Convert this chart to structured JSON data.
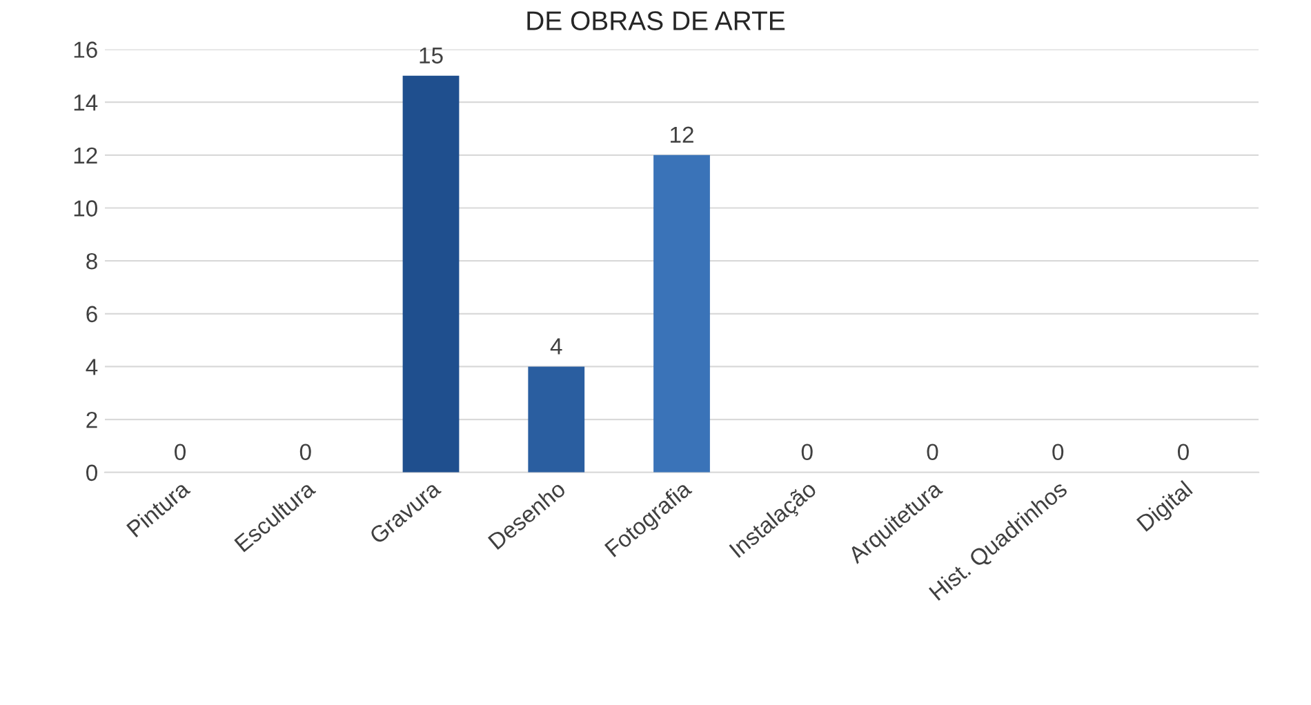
{
  "chart_data": {
    "type": "bar",
    "title": "DE OBRAS DE ARTE",
    "categories": [
      "Pintura",
      "Escultura",
      "Gravura",
      "Desenho",
      "Fotografia",
      "Instalação",
      "Arquitetura",
      "Hist. Quadrinhos",
      "Digital"
    ],
    "values": [
      0,
      0,
      15,
      4,
      12,
      0,
      0,
      0,
      0
    ],
    "colors": [
      "#12375e",
      "#163f6b",
      "#1f4f8e",
      "#2a5ea0",
      "#3a73b8",
      "#4f6d94",
      "#60789a",
      "#7285a3",
      "#8c9ab0"
    ],
    "ylim": [
      0,
      16
    ],
    "yticks": [
      0,
      2,
      4,
      6,
      8,
      10,
      12,
      14,
      16
    ],
    "grid": "y",
    "data_labels": true
  }
}
